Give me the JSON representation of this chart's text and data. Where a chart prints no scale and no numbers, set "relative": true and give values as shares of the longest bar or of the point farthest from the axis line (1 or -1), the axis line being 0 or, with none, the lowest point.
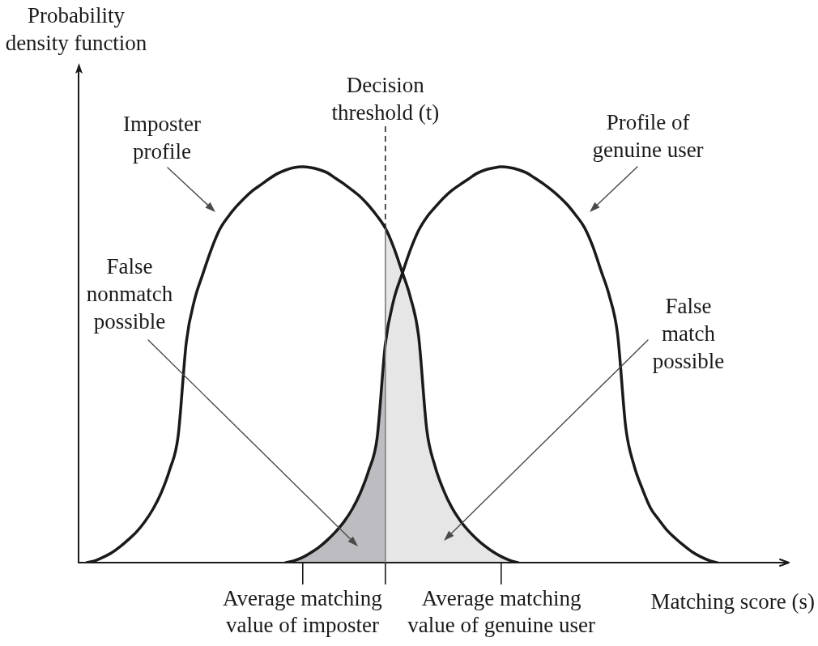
{
  "chart_data": {
    "type": "line",
    "relative": true,
    "xlabel": "Matching score (s)",
    "tick_labels": "x",
    "annotations": [
      "Probability density function",
      "Decision threshold (t)"
    ],
    "categories": [
      null,
      null,
      null,
      null,
      null,
      null,
      null,
      null,
      null,
      null,
      null,
      null,
      null,
      null,
      null,
      null,
      null,
      null,
      null,
      null,
      null,
      null,
      null,
      null,
      null,
      null,
      null,
      "Average matching value of imposter",
      null,
      null,
      null,
      null,
      null,
      null,
      null,
      null,
      null,
      null,
      null,
      null,
      null,
      null,
      null,
      null,
      null,
      null,
      null,
      null,
      null,
      null,
      null,
      "Average matching value of genuine user",
      null,
      null,
      null,
      null,
      null,
      null,
      null,
      null,
      null,
      null,
      null,
      null,
      null,
      null,
      null,
      null,
      null,
      null,
      null,
      null,
      null,
      null,
      null,
      null,
      null,
      null,
      null,
      null,
      null,
      null,
      null,
      null,
      null
    ],
    "series": [
      {
        "name": "Imposter profile",
        "color": "#1a1a1a",
        "values": [
          null,
          0,
          0.005,
          0.014,
          0.025,
          0.04,
          0.058,
          0.078,
          0.104,
          0.136,
          0.178,
          0.235,
          0.318,
          0.558,
          0.665,
          0.73,
          0.791,
          0.841,
          0.873,
          0.899,
          0.921,
          0.94,
          0.955,
          0.97,
          0.983,
          0.992,
          0.998,
          1,
          0.998,
          0.993,
          0.985,
          0.971,
          0.957,
          0.941,
          0.924,
          0.902,
          0.876,
          0.845,
          0.797,
          0.736,
          0.672,
          0.574,
          0.335,
          0.243,
          0.184,
          0.14,
          0.107,
          0.081,
          0.06,
          0.042,
          0.027,
          0.015,
          0.006,
          0,
          null,
          null,
          null,
          null,
          null,
          null,
          null,
          null,
          null,
          null,
          null,
          null,
          null,
          null,
          null,
          null,
          null,
          null,
          null,
          null,
          null,
          null,
          null,
          null,
          null,
          null,
          null,
          null,
          null,
          null,
          null
        ]
      },
      {
        "name": "Profile of genuine user",
        "color": "#1a1a1a",
        "values": [
          null,
          null,
          null,
          null,
          null,
          null,
          null,
          null,
          null,
          null,
          null,
          null,
          null,
          null,
          null,
          null,
          null,
          null,
          null,
          null,
          null,
          null,
          null,
          null,
          null,
          0,
          0.005,
          0.013,
          0.025,
          0.039,
          0.057,
          0.078,
          0.103,
          0.135,
          0.177,
          0.233,
          0.314,
          0.553,
          0.663,
          0.728,
          0.789,
          0.839,
          0.873,
          0.898,
          0.921,
          0.94,
          0.955,
          0.969,
          0.983,
          0.992,
          0.997,
          1,
          0.998,
          0.993,
          0.985,
          0.972,
          0.958,
          0.942,
          0.924,
          0.903,
          0.877,
          0.847,
          0.8,
          0.738,
          0.675,
          0.578,
          0.34,
          0.245,
          0.186,
          0.137,
          0.108,
          0.081,
          0.061,
          0.043,
          0.027,
          0.015,
          0.006,
          0,
          null,
          null,
          null,
          null,
          null,
          null,
          null
        ]
      },
      {
        "name": "False nonmatch possible",
        "type": "area",
        "color": "#bdbdc1",
        "values": [
          null,
          null,
          null,
          null,
          null,
          null,
          null,
          null,
          null,
          null,
          null,
          null,
          null,
          null,
          null,
          null,
          null,
          null,
          null,
          null,
          null,
          null,
          null,
          null,
          null,
          0,
          0.005,
          0.013,
          0.025,
          0.039,
          0.057,
          0.078,
          0.103,
          0.135,
          0.177,
          0.233,
          0.314,
          0.553,
          null,
          null,
          null,
          null,
          null,
          null,
          null,
          null,
          null,
          null,
          null,
          null,
          null,
          null,
          null,
          null,
          null,
          null,
          null,
          null,
          null,
          null,
          null,
          null,
          null,
          null,
          null,
          null,
          null,
          null,
          null,
          null,
          null,
          null,
          null,
          null,
          null,
          null,
          null,
          null,
          null,
          null,
          null,
          null,
          null,
          null,
          null
        ]
      },
      {
        "name": "False match possible",
        "type": "area",
        "color": "#e6e6e6",
        "values": [
          null,
          null,
          null,
          null,
          null,
          null,
          null,
          null,
          null,
          null,
          null,
          null,
          null,
          null,
          null,
          null,
          null,
          null,
          null,
          null,
          null,
          null,
          null,
          null,
          null,
          null,
          null,
          null,
          null,
          null,
          null,
          null,
          null,
          null,
          null,
          null,
          null,
          0.845,
          0.797,
          0.736,
          0.672,
          0.574,
          0.335,
          0.243,
          0.184,
          0.14,
          0.107,
          0.081,
          0.06,
          0.042,
          0.027,
          0.015,
          0.006,
          0,
          null,
          null,
          null,
          null,
          null,
          null,
          null,
          null,
          null,
          null,
          null,
          null,
          null,
          null,
          null,
          null,
          null,
          null,
          null,
          null,
          null,
          null,
          null,
          null,
          null,
          null,
          null,
          null,
          null,
          null,
          null
        ]
      }
    ]
  }
}
